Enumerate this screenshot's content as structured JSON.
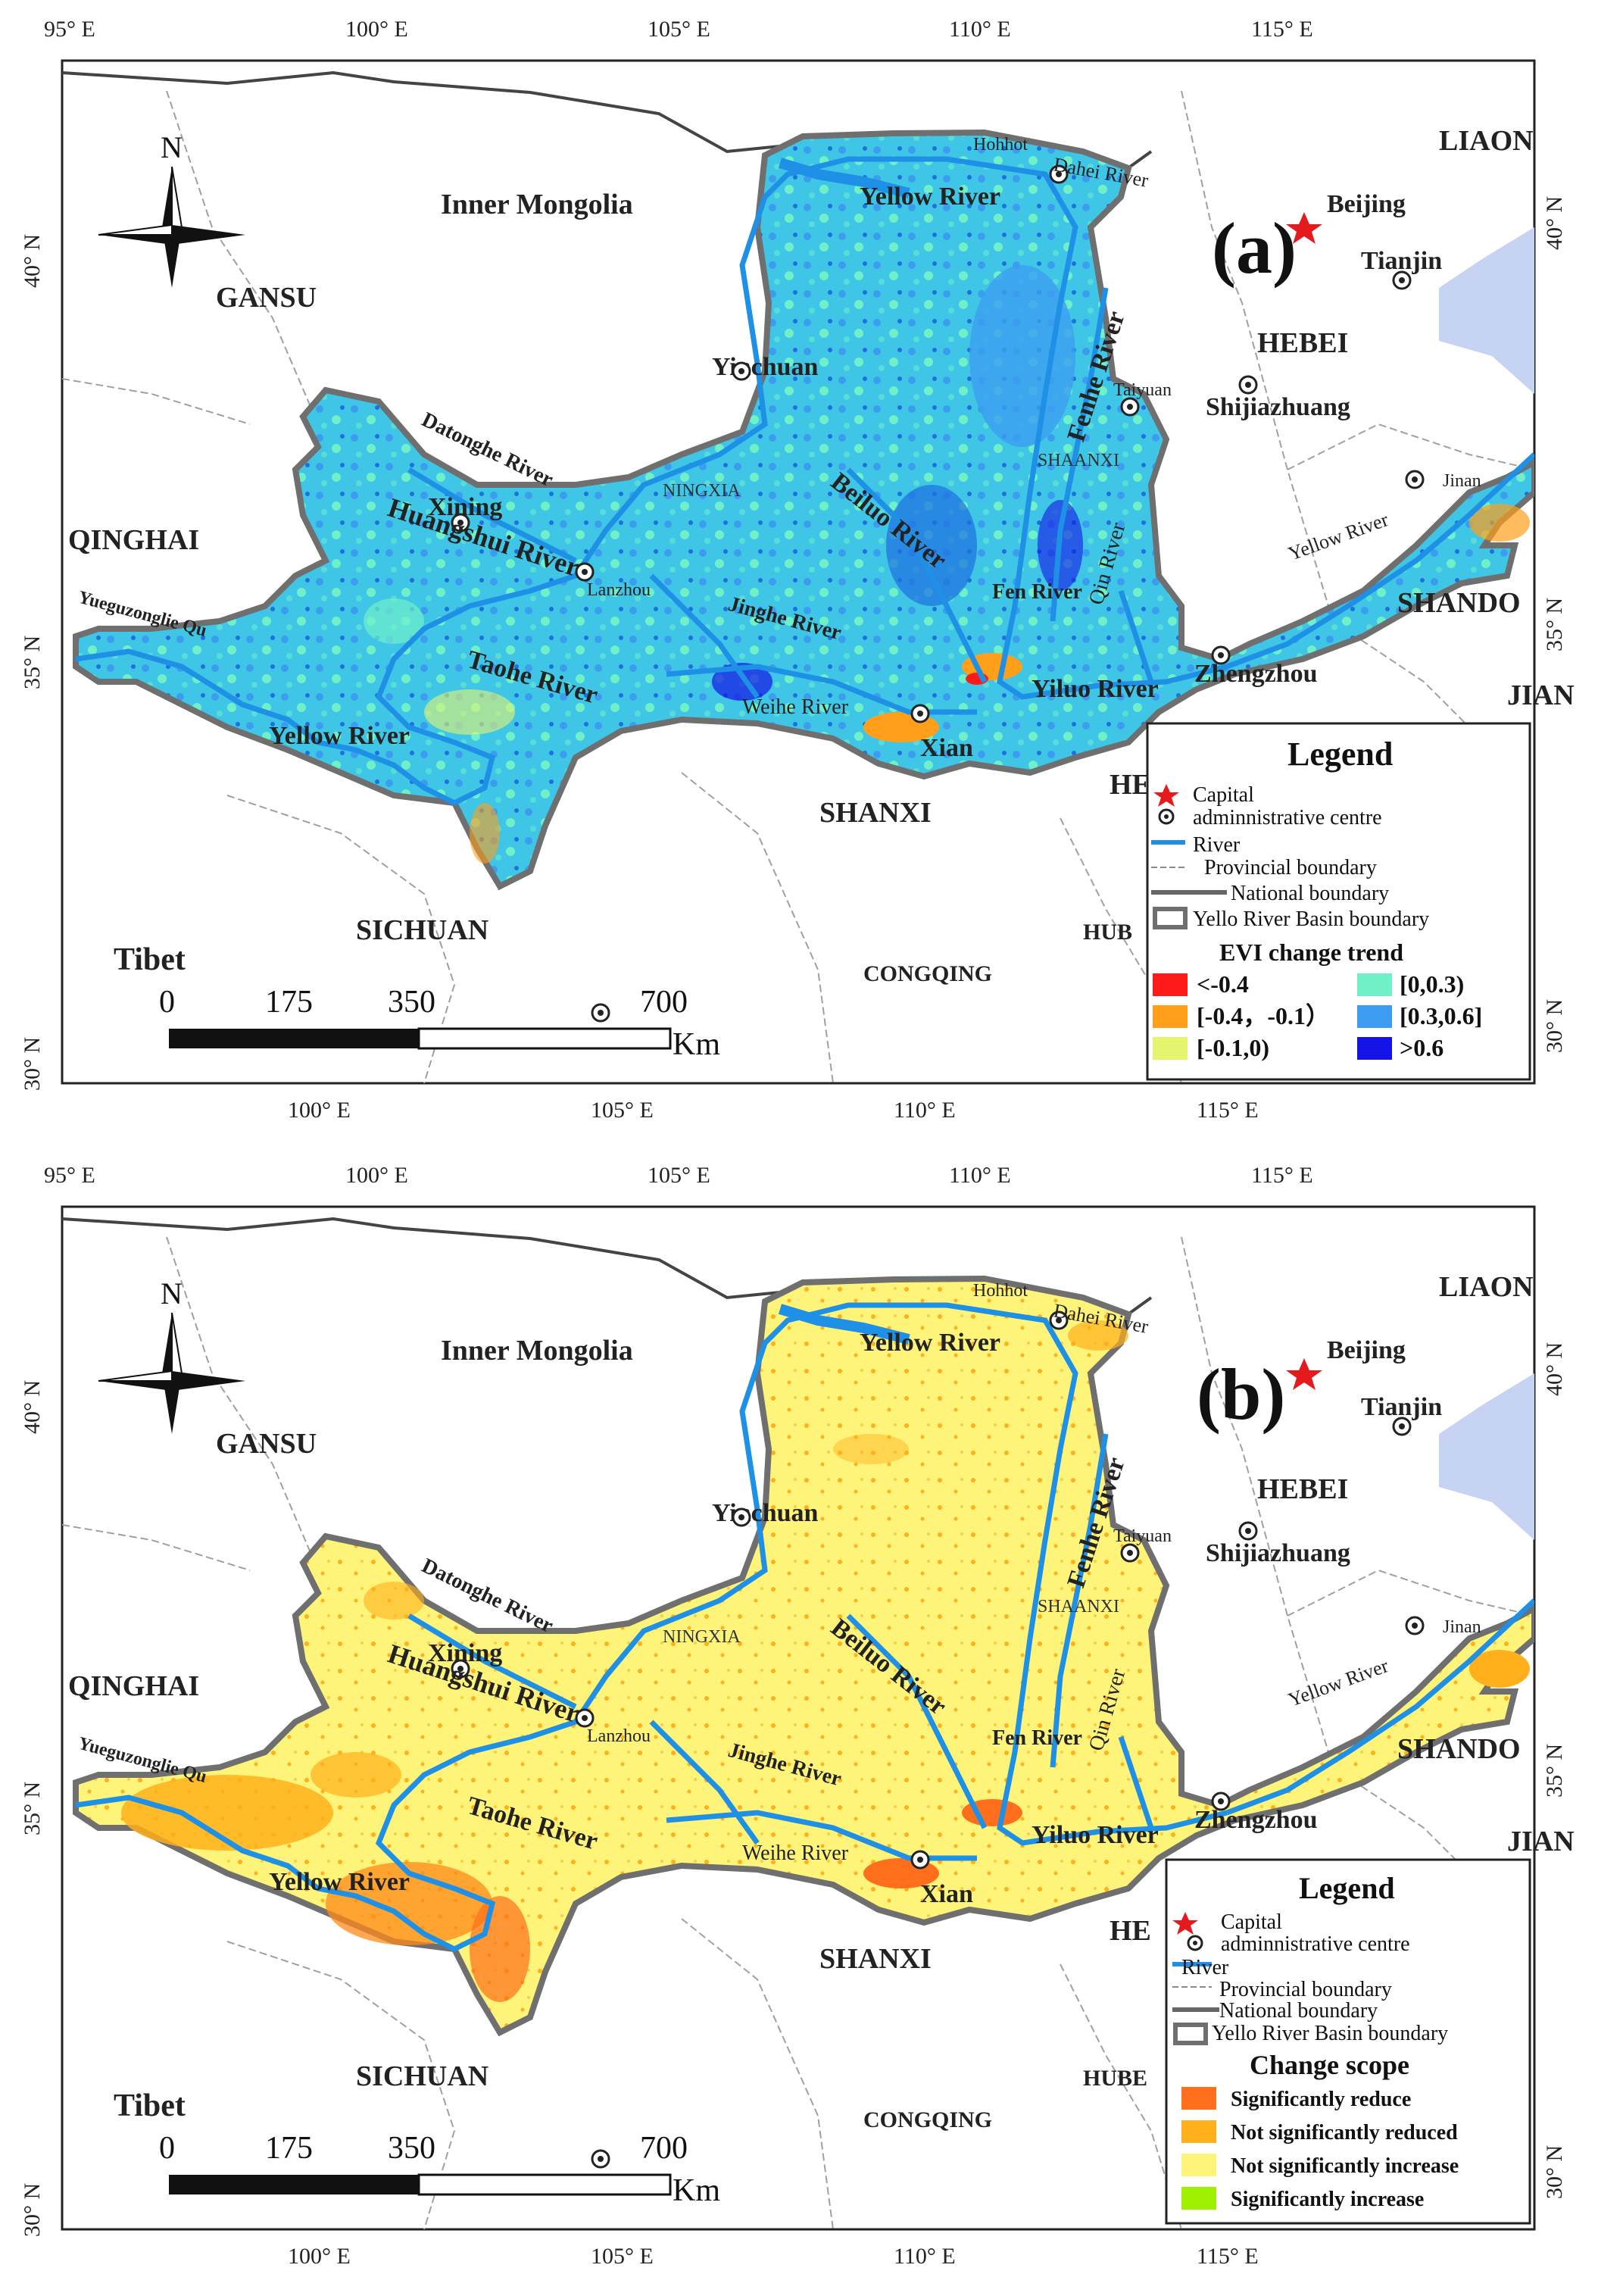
{
  "axes": {
    "lon_ticks": [
      "95° E",
      "100° E",
      "105° E",
      "110° E",
      "115° E"
    ],
    "lat_ticks": [
      "30° N",
      "35° N",
      "40° N"
    ]
  },
  "common_labels": {
    "north": "N",
    "provinces": [
      "Inner Mongolia",
      "GANSU",
      "QINGHAI",
      "SICHUAN",
      "Tibet",
      "SHANXI",
      "HEBEI",
      "NINGXIA",
      "SHAANXI",
      "CONGQING",
      "LIAON",
      "SHANDO",
      "JIAN"
    ],
    "cities": [
      "Beijing",
      "Tianjin",
      "Shijiazhuang",
      "Taiyuan",
      "Jinan",
      "Zhengzhou",
      "Xian",
      "Yinchuan",
      "Xining",
      "Lanzhou",
      "Hohhot"
    ],
    "rivers": [
      "Yellow River",
      "Dahei River",
      "Fenhe River",
      "Datonghe River",
      "Huangshui River",
      "Beiluo River",
      "Jinghe River",
      "Fen River",
      "Qin River",
      "Taohe River",
      "Weihe River",
      "Yiluo River",
      "Yueguzonglie Qu"
    ],
    "scale_ticks": [
      "0",
      "175",
      "350",
      "700"
    ],
    "scale_unit": "Km",
    "legend_title": "Legend",
    "legend_common": [
      "Capital",
      "adminnistrative centre",
      "River",
      "Provincial boundary",
      "National boundary",
      "Yello River Basin boundary"
    ]
  },
  "colors": {
    "river": "#1e90e6",
    "capital_star": "#e41a1c",
    "sea": "#c6d3f2",
    "province_line": "#a0a0a0",
    "basin_border": "#6f6f6f"
  },
  "panel_a": {
    "label": "(a)",
    "legend_sub_title": "EVI  change trend",
    "hub_label": "HE",
    "hube_label": "HUB",
    "classes": [
      {
        "label": "<-0.4",
        "color": "#ff1a1a"
      },
      {
        "label": "[-0.4，-0.1）",
        "color": "#ff9f1a"
      },
      {
        "label": "[-0.1,0)",
        "color": "#e6f56e"
      },
      {
        "label": "[0,0.3)",
        "color": "#6ff0c9"
      },
      {
        "label": "[0.3,0.6]",
        "color": "#3c9df0"
      },
      {
        "label": ">0.6",
        "color": "#1414e6"
      }
    ]
  },
  "panel_b": {
    "label": "(b)",
    "legend_sub_title": "Change scope",
    "hub_label": "HE",
    "hube_label": "HUBE",
    "classes": [
      {
        "label": "Significantly reduce",
        "color": "#ff6e1a"
      },
      {
        "label": "Not significantly reduced",
        "color": "#ffb01a"
      },
      {
        "label": "Not significantly increase",
        "color": "#fff47a"
      },
      {
        "label": "Significantly increase",
        "color": "#9ef000"
      }
    ]
  }
}
